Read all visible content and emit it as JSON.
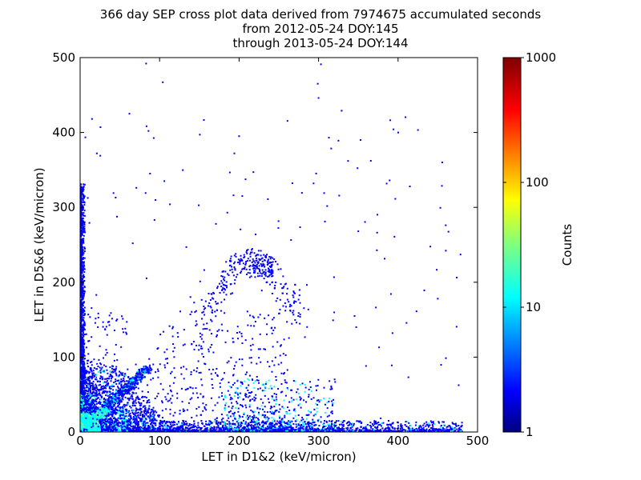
{
  "chart_data": {
    "type": "heatmap",
    "title_lines": [
      "366 day SEP cross plot data derived from 7974675 accumulated seconds",
      "from 2012-05-24 DOY:145",
      "through 2013-05-24 DOY:144"
    ],
    "xlabel": "LET in D1&2 (keV/micron)",
    "ylabel": "LET in D5&6 (keV/micron)",
    "xlim": [
      0,
      500
    ],
    "ylim": [
      0,
      500
    ],
    "xticks": [
      "0",
      "100",
      "200",
      "300",
      "400",
      "500"
    ],
    "yticks": [
      "0",
      "100",
      "200",
      "300",
      "400",
      "500"
    ],
    "colorbar": {
      "label": "Counts",
      "scale": "log",
      "range": [
        1,
        1000
      ],
      "ticks": [
        "1",
        "10",
        "100",
        "1000"
      ],
      "colormap": "jet"
    },
    "features": {
      "diagonal_band": {
        "x_range": [
          0,
          90
        ],
        "y_equals_x": true
      },
      "cluster": {
        "x_range": [
          210,
          240
        ],
        "y_range": [
          200,
          240
        ]
      },
      "scattered_points": [
        {
          "x": 82,
          "y": 491
        },
        {
          "x": 103,
          "y": 466
        },
        {
          "x": 302,
          "y": 490
        },
        {
          "x": 298,
          "y": 464
        },
        {
          "x": 61,
          "y": 424
        },
        {
          "x": 14,
          "y": 417
        },
        {
          "x": 85,
          "y": 401
        },
        {
          "x": 324,
          "y": 388
        },
        {
          "x": 199,
          "y": 394
        },
        {
          "x": 193,
          "y": 371
        },
        {
          "x": 312,
          "y": 392
        },
        {
          "x": 20,
          "y": 371
        },
        {
          "x": 87,
          "y": 344
        },
        {
          "x": 105,
          "y": 334
        },
        {
          "x": 306,
          "y": 318
        },
        {
          "x": 192,
          "y": 315
        },
        {
          "x": 203,
          "y": 314
        },
        {
          "x": 41,
          "y": 318
        },
        {
          "x": 112,
          "y": 303
        },
        {
          "x": 349,
          "y": 267
        },
        {
          "x": 432,
          "y": 188
        },
        {
          "x": 392,
          "y": 131
        },
        {
          "x": 412,
          "y": 72
        },
        {
          "x": 307,
          "y": 280
        },
        {
          "x": 150,
          "y": 200
        },
        {
          "x": 178,
          "y": 198
        },
        {
          "x": 328,
          "y": 428
        },
        {
          "x": 299,
          "y": 445
        },
        {
          "x": 217,
          "y": 346
        }
      ]
    }
  }
}
